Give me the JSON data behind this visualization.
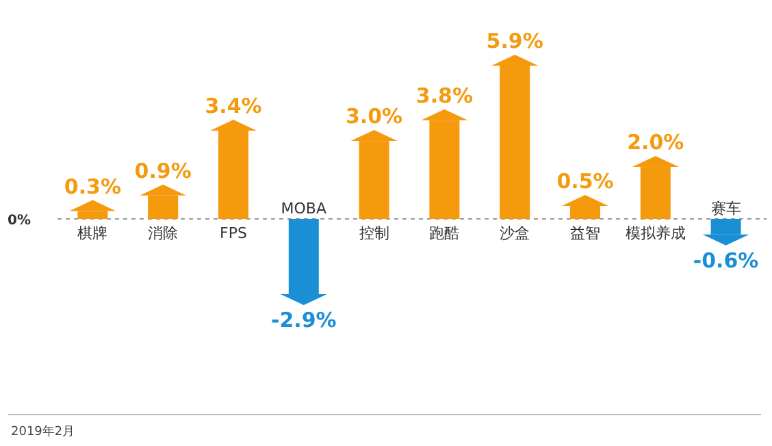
{
  "chart_data": {
    "type": "bar",
    "categories": [
      "棋牌",
      "消除",
      "FPS",
      "MOBA",
      "控制",
      "跑酷",
      "沙盒",
      "益智",
      "模拟养成",
      "赛车"
    ],
    "values": [
      0.3,
      0.9,
      3.4,
      -2.9,
      3.0,
      3.8,
      5.9,
      0.5,
      2.0,
      -0.6
    ],
    "colors": [
      "#f59a0c",
      "#f59a0c",
      "#f59a0c",
      "#1a8fd6",
      "#f59a0c",
      "#f59a0c",
      "#f59a0c",
      "#f59a0c",
      "#f59a0c",
      "#1a8fd6"
    ],
    "value_labels": [
      "0.3%",
      "0.9%",
      "3.4%",
      "-2.9%",
      "3.0%",
      "3.8%",
      "5.9%",
      "0.5%",
      "2.0%",
      "-0.6%"
    ],
    "ref_lines": [
      {
        "axis": "y",
        "value": 0,
        "label": "0%",
        "line_style": "dashed"
      }
    ],
    "annotations": [
      "2019年2月"
    ]
  }
}
